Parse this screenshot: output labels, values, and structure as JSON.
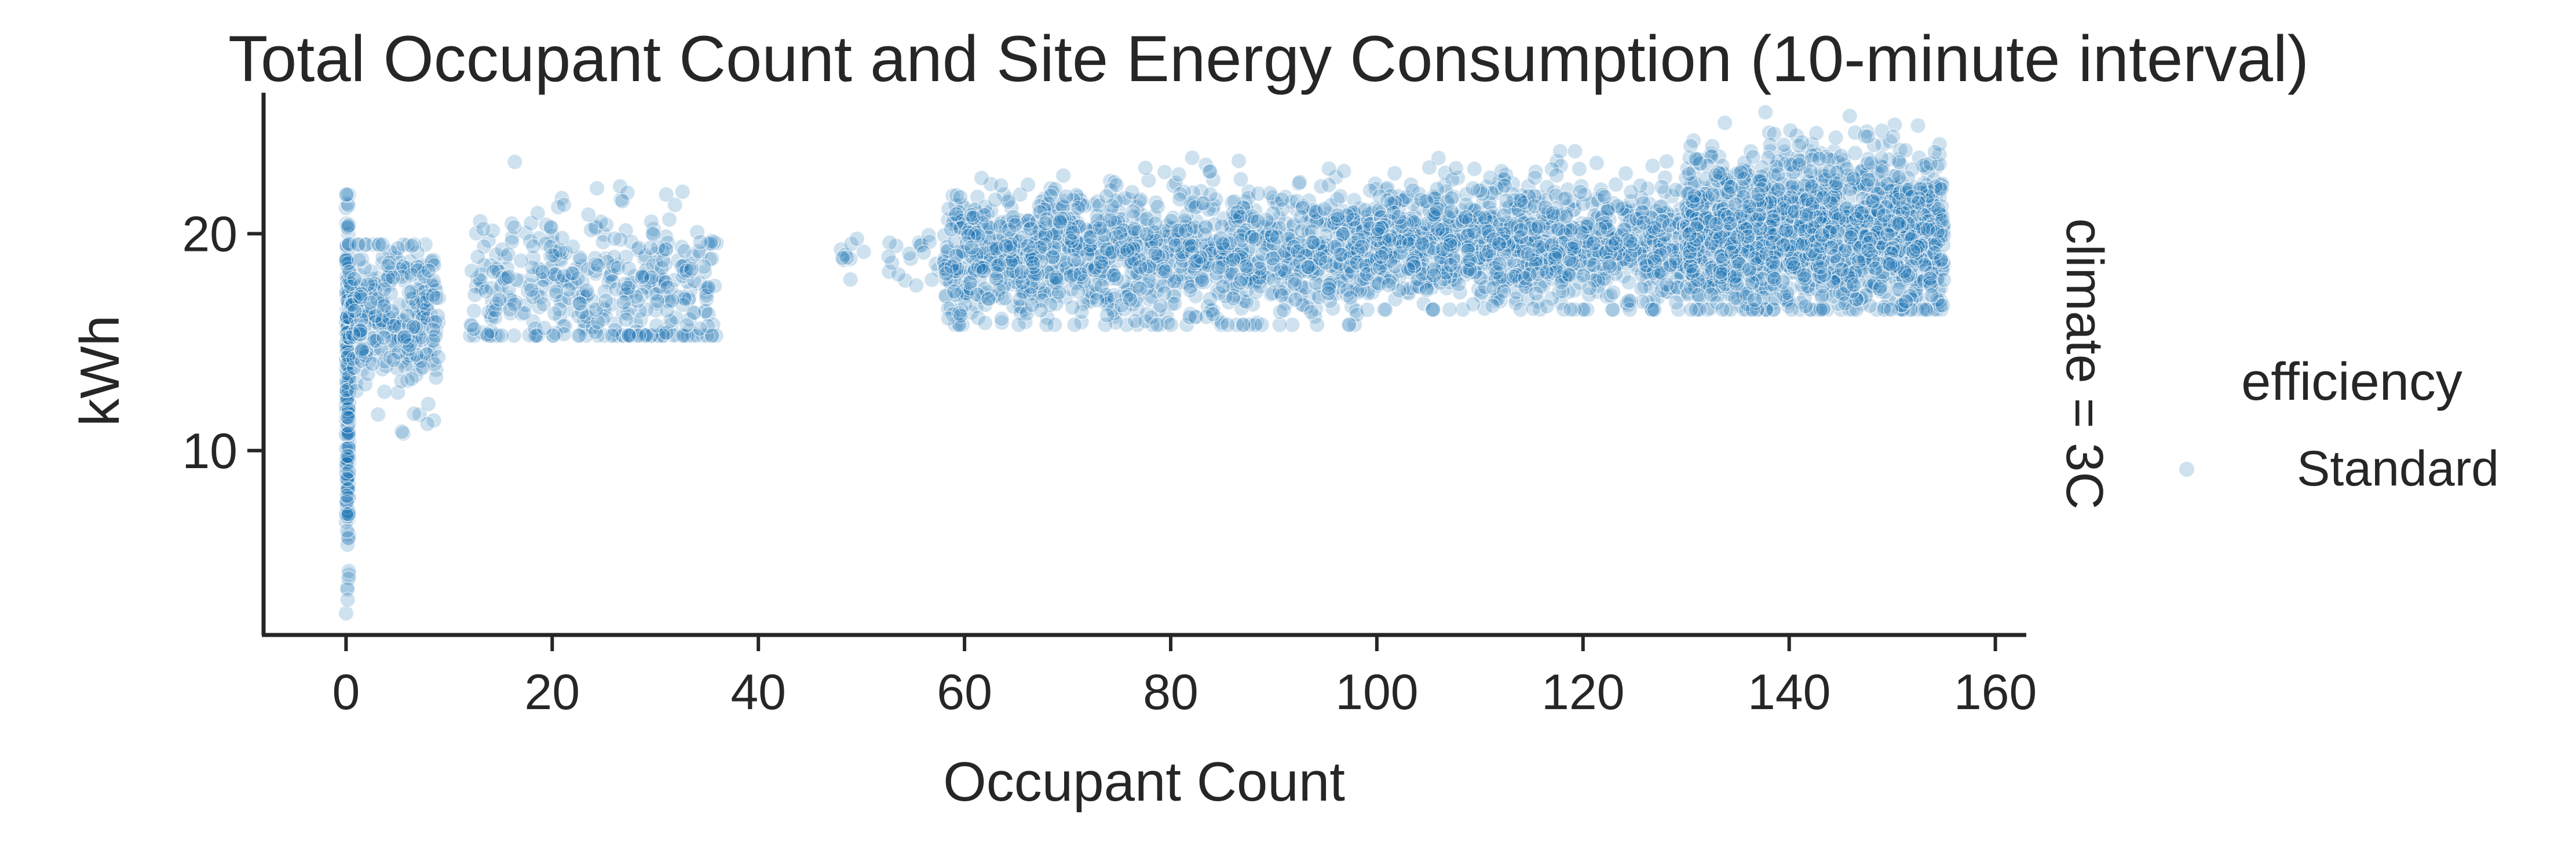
{
  "chart_data": {
    "type": "scatter",
    "title": "Total Occupant Count and Site Energy Consumption (10-minute interval)",
    "xlabel": "Occupant Count",
    "ylabel": "kWh",
    "xlim": [
      -8,
      163
    ],
    "ylim": [
      1.5,
      26.5
    ],
    "xticks": [
      0,
      20,
      40,
      60,
      80,
      100,
      120,
      140,
      160
    ],
    "yticks": [
      10,
      20
    ],
    "facet_label": "climate = 3C",
    "legend": {
      "title": "efficiency",
      "placement": "right",
      "entries": [
        {
          "label": "Standard",
          "color": "#1f77b4"
        }
      ]
    },
    "marker_color": "#1f77b4",
    "marker_opacity": 0.22,
    "grid": false,
    "series": [
      {
        "name": "Standard",
        "clusters": [
          {
            "x_range": [
              0,
              0.3
            ],
            "y_range": [
              2.5,
              21.8
            ],
            "y_center": 13,
            "count": 260
          },
          {
            "x_range": [
              0.3,
              9
            ],
            "y_range": [
              10.5,
              19.5
            ],
            "y_center": 16.0,
            "count": 320
          },
          {
            "x_range": [
              12,
              36
            ],
            "y_range": [
              15.3,
              24.5
            ],
            "y_center": 17.5,
            "count": 420
          },
          {
            "x_range": [
              48,
              58
            ],
            "y_range": [
              16.8,
              20.5
            ],
            "y_center": 18.6,
            "count": 30
          },
          {
            "x_range": [
              58,
              100
            ],
            "y_range": [
              15.8,
              23.5
            ],
            "y_center": 19.0,
            "count": 1400
          },
          {
            "x_range": [
              100,
              130
            ],
            "y_range": [
              16.5,
              23.8
            ],
            "y_center": 19.5,
            "count": 1100
          },
          {
            "x_range": [
              130,
              155
            ],
            "y_range": [
              16.5,
              25.6
            ],
            "y_center": 20.0,
            "count": 1800
          }
        ]
      }
    ]
  }
}
